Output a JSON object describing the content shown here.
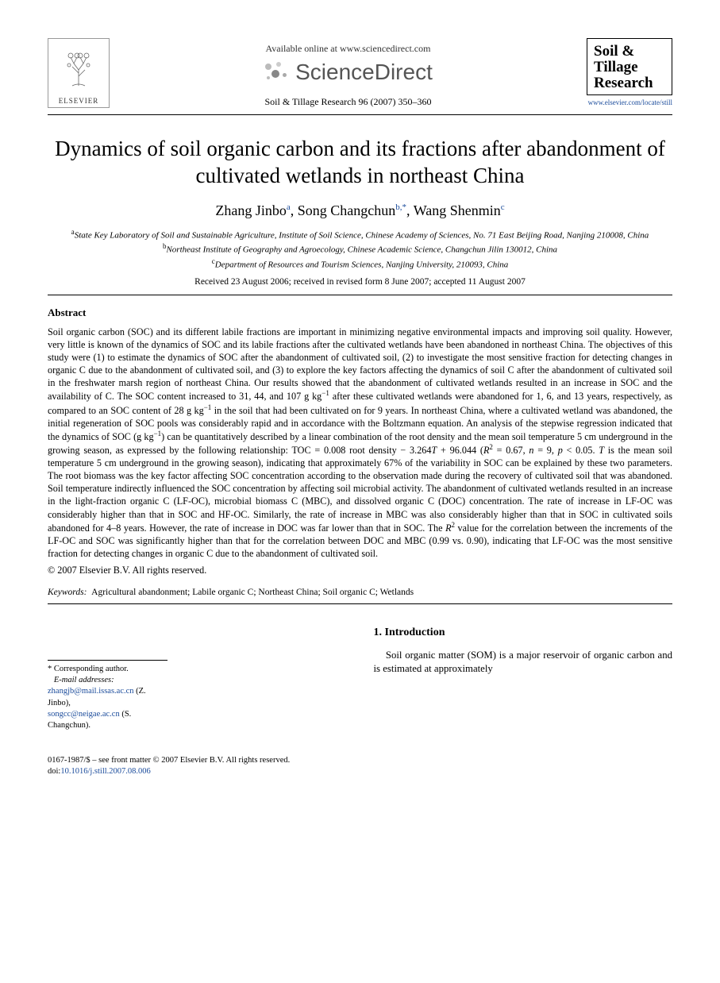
{
  "header": {
    "elsevier_label": "ELSEVIER",
    "available_online": "Available online at www.sciencedirect.com",
    "sciencedirect": "ScienceDirect",
    "citation": "Soil & Tillage Research 96 (2007) 350–360",
    "journal_box_line1": "Soil &",
    "journal_box_line2": "Tillage",
    "journal_box_line3": "Research",
    "journal_url": "www.elsevier.com/locate/still"
  },
  "title": "Dynamics of soil organic carbon and its fractions after abandonment of cultivated wetlands in northeast China",
  "authors": {
    "a1_name": "Zhang Jinbo",
    "a1_sup": "a",
    "a2_name": "Song Changchun",
    "a2_sup": "b,*",
    "a3_name": "Wang Shenmin",
    "a3_sup": "c"
  },
  "affiliations": {
    "a": "State Key Laboratory of Soil and Sustainable Agriculture, Institute of Soil Science, Chinese Academy of Sciences, No. 71 East Beijing Road, Nanjing 210008, China",
    "b": "Northeast Institute of Geography and Agroecology, Chinese Academic Science, Changchun Jilin 130012, China",
    "c": "Department of Resources and Tourism Sciences, Nanjing University, 210093, China"
  },
  "dates": "Received 23 August 2006; received in revised form 8 June 2007; accepted 11 August 2007",
  "abstract": {
    "heading": "Abstract",
    "body_html": "Soil organic carbon (SOC) and its different labile fractions are important in minimizing negative environmental impacts and improving soil quality. However, very little is known of the dynamics of SOC and its labile fractions after the cultivated wetlands have been abandoned in northeast China. The objectives of this study were (1) to estimate the dynamics of SOC after the abandonment of cultivated soil, (2) to investigate the most sensitive fraction for detecting changes in organic C due to the abandonment of cultivated soil, and (3) to explore the key factors affecting the dynamics of soil C after the abandonment of cultivated soil in the freshwater marsh region of northeast China. Our results showed that the abandonment of cultivated wetlands resulted in an increase in SOC and the availability of C. The SOC content increased to 31, 44, and 107 g kg<sup>−1</sup> after these cultivated wetlands were abandoned for 1, 6, and 13 years, respectively, as compared to an SOC content of 28 g kg<sup>−1</sup> in the soil that had been cultivated on for 9 years. In northeast China, where a cultivated wetland was abandoned, the initial regeneration of SOC pools was considerably rapid and in accordance with the Boltzmann equation. An analysis of the stepwise regression indicated that the dynamics of SOC (g kg<sup>−1</sup>) can be quantitatively described by a linear combination of the root density and the mean soil temperature 5 cm underground in the growing season, as expressed by the following relationship: TOC = 0.008 root density − 3.264<i>T</i> + 96.044 (<i>R</i><sup>2</sup> = 0.67, <i>n</i> = 9, <i>p</i> < 0.05. <i>T</i> is the mean soil temperature 5 cm underground in the growing season), indicating that approximately 67% of the variability in SOC can be explained by these two parameters. The root biomass was the key factor affecting SOC concentration according to the observation made during the recovery of cultivated soil that was abandoned. Soil temperature indirectly influenced the SOC concentration by affecting soil microbial activity. The abandonment of cultivated wetlands resulted in an increase in the light-fraction organic C (LF-OC), microbial biomass C (MBC), and dissolved organic C (DOC) concentration. The rate of increase in LF-OC was considerably higher than that in SOC and HF-OC. Similarly, the rate of increase in MBC was also considerably higher than that in SOC in cultivated soils abandoned for 4–8 years. However, the rate of increase in DOC was far lower than that in SOC. The <i>R</i><sup>2</sup> value for the correlation between the increments of the LF-OC and SOC was significantly higher than that for the correlation between DOC and MBC (0.99 vs. 0.90), indicating that LF-OC was the most sensitive fraction for detecting changes in organic C due to the abandonment of cultivated soil.",
    "copyright": "© 2007 Elsevier B.V. All rights reserved."
  },
  "keywords": {
    "label": "Keywords:",
    "text": "Agricultural abandonment; Labile organic C; Northeast China; Soil organic C; Wetlands"
  },
  "footnotes": {
    "corr_label": "* Corresponding author.",
    "email_label": "E-mail addresses:",
    "email1": "zhangjb@mail.issas.ac.cn",
    "email1_name": "(Z. Jinbo),",
    "email2": "songcc@neigae.ac.cn",
    "email2_name": "(S. Changchun)."
  },
  "intro": {
    "heading": "1.  Introduction",
    "body": "Soil organic matter (SOM) is a major reservoir of organic carbon and is estimated at approximately"
  },
  "footer": {
    "issn_line": "0167-1987/$ – see front matter © 2007 Elsevier B.V. All rights reserved.",
    "doi_label": "doi:",
    "doi": "10.1016/j.still.2007.08.006"
  },
  "colors": {
    "link": "#1a4b9b",
    "text": "#000000",
    "bg": "#ffffff",
    "logo_gray": "#666666"
  }
}
